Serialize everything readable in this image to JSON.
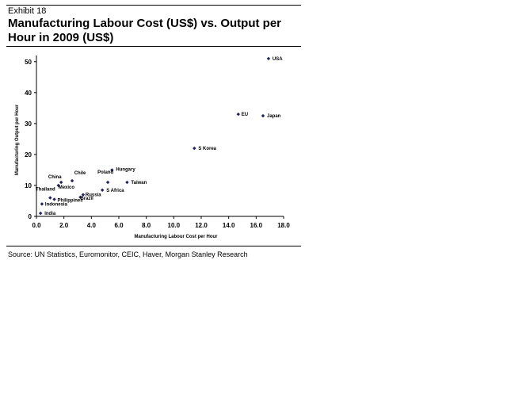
{
  "exhibit_label": "Exhibit 18",
  "title": "Manufacturing Labour Cost (US$) vs. Output per Hour in 2009 (US$)",
  "source": "Source: UN Statistics, Euromonitor, CEIC, Haver, Morgan Stanley Research",
  "chart_data": {
    "type": "scatter",
    "title": "Manufacturing Labour Cost (US$) vs. Output per Hour in 2009 (US$)",
    "xlabel": "Manufacturing Labour Cost per Hour",
    "ylabel": "Manufacturing Output per Hour",
    "xlim": [
      0,
      18
    ],
    "ylim": [
      0,
      52
    ],
    "xticks": [
      "0.0",
      "2.0",
      "4.0",
      "6.0",
      "8.0",
      "10.0",
      "12.0",
      "14.0",
      "16.0",
      "18.0"
    ],
    "yticks": [
      "0",
      "10",
      "20",
      "30",
      "40",
      "50"
    ],
    "grid": false,
    "marker_color": "#1f1f6e",
    "points": [
      {
        "label": "USA",
        "x": 16.9,
        "y": 51
      },
      {
        "label": "EU",
        "x": 14.7,
        "y": 33
      },
      {
        "label": "Japan",
        "x": 16.5,
        "y": 32.5
      },
      {
        "label": "S Korea",
        "x": 11.5,
        "y": 22
      },
      {
        "label": "Hungary",
        "x": 5.5,
        "y": 15
      },
      {
        "label": "Taiwan",
        "x": 6.6,
        "y": 11
      },
      {
        "label": "Poland",
        "x": 5.2,
        "y": 11
      },
      {
        "label": "S Africa",
        "x": 4.8,
        "y": 8.5
      },
      {
        "label": "Chile",
        "x": 2.6,
        "y": 11.5
      },
      {
        "label": "China",
        "x": 1.8,
        "y": 11
      },
      {
        "label": "Mexico",
        "x": 1.6,
        "y": 10
      },
      {
        "label": "Thailand",
        "x": 1.0,
        "y": 6
      },
      {
        "label": "Russia",
        "x": 3.4,
        "y": 7
      },
      {
        "label": "Brazil",
        "x": 3.2,
        "y": 6.2
      },
      {
        "label": "Philippines",
        "x": 1.3,
        "y": 5.5
      },
      {
        "label": "Indonesia",
        "x": 0.4,
        "y": 4
      },
      {
        "label": "India",
        "x": 0.3,
        "y": 1
      }
    ]
  }
}
